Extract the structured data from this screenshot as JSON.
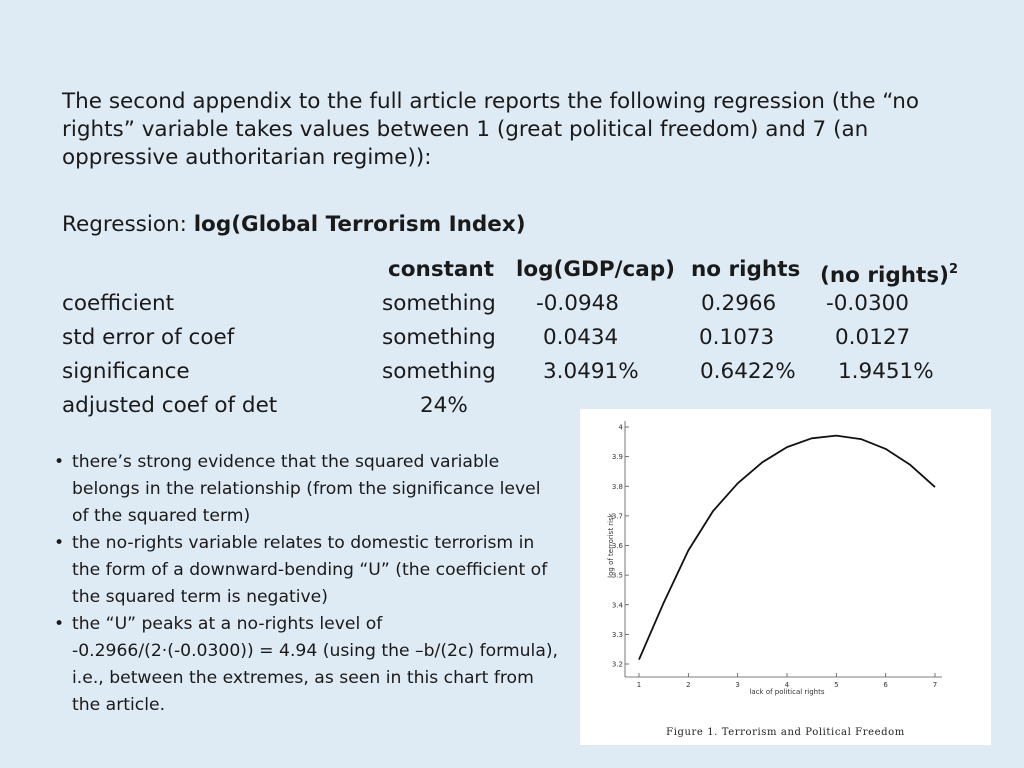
{
  "intro_text": "The second appendix to the full article reports the following regression (the “no rights” variable takes values between 1 (great political freedom) and 7  (an oppressive authoritarian regime)):",
  "regression": {
    "prefix": "Regression: ",
    "dependent": "log(Global Terrorism Index)"
  },
  "table": {
    "headers": [
      "constant",
      "log(GDP/cap)",
      "no rights",
      "(no rights)",
      "2"
    ],
    "rows": [
      {
        "label": "coefficient",
        "values": [
          "something",
          "-0.0948",
          "0.2966",
          "-0.0300"
        ]
      },
      {
        "label": "std error of coef",
        "values": [
          "something",
          "0.0434",
          "0.1073",
          "0.0127"
        ]
      },
      {
        "label": "significance",
        "values": [
          "something",
          "3.0491%",
          "0.6422%",
          "1.9451%"
        ]
      }
    ],
    "adjusted": {
      "label": "adjusted coef of det",
      "value": "24%"
    }
  },
  "bullets": [
    "there’s strong evidence that the squared variable belongs in the relationship (from the significance level of the squared term)",
    "the no-rights variable relates to domestic terrorism in the form of a downward-bending “U” (the coefficient of the squared term is negative)",
    "the “U” peaks at a no-rights level of -0.2966/(2·(-0.0300)) = 4.94 (using the –b/(2c) formula), i.e., between the extremes, as seen in this chart from the article."
  ],
  "bullet_glyph": "•",
  "chart_data": {
    "type": "line",
    "title": "",
    "caption": "Figure 1. Terrorism and Political Freedom",
    "xlabel": "lack of political rights",
    "ylabel": "log of terrorist risk",
    "xlim": [
      1,
      7
    ],
    "ylim": [
      3.2,
      4.0
    ],
    "x_ticks": [
      1,
      2,
      3,
      4,
      5,
      6,
      7
    ],
    "y_ticks": [
      3.2,
      3.3,
      3.4,
      3.5,
      3.6,
      3.7,
      3.8,
      3.9,
      4
    ],
    "series": [
      {
        "x": [
          1,
          1.5,
          2,
          2.5,
          3,
          3.5,
          4,
          4.5,
          5,
          5.5,
          6,
          6.5,
          7
        ],
        "y": [
          3.215,
          3.407,
          3.583,
          3.716,
          3.81,
          3.881,
          3.932,
          3.962,
          3.971,
          3.959,
          3.926,
          3.872,
          3.797
        ]
      }
    ],
    "grid": false,
    "line_color": "#111111"
  }
}
